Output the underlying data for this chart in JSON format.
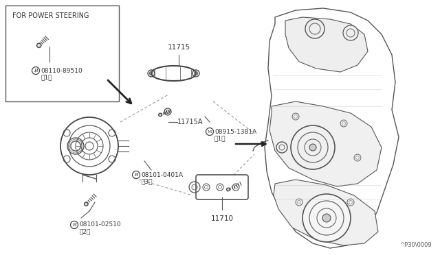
{
  "bg_color": "#f5f5f0",
  "line_color": "#444444",
  "text_color": "#333333",
  "diagram_id": "^P30\\0009",
  "labels": {
    "inset_title": "FOR POWER STEERING",
    "part1_code": "08110-89510",
    "part1_qty": "（1）",
    "part2_label": "11715",
    "part3_label": "11715A",
    "part4_code": "08101-0401A",
    "part4_qty": "（3）",
    "part5_code": "08915-1381A",
    "part5_qty": "（1）",
    "part6_label": "11710",
    "part7_code": "08101-02510",
    "part7_qty": "（2）"
  },
  "fig_width": 6.4,
  "fig_height": 3.72,
  "dpi": 100
}
